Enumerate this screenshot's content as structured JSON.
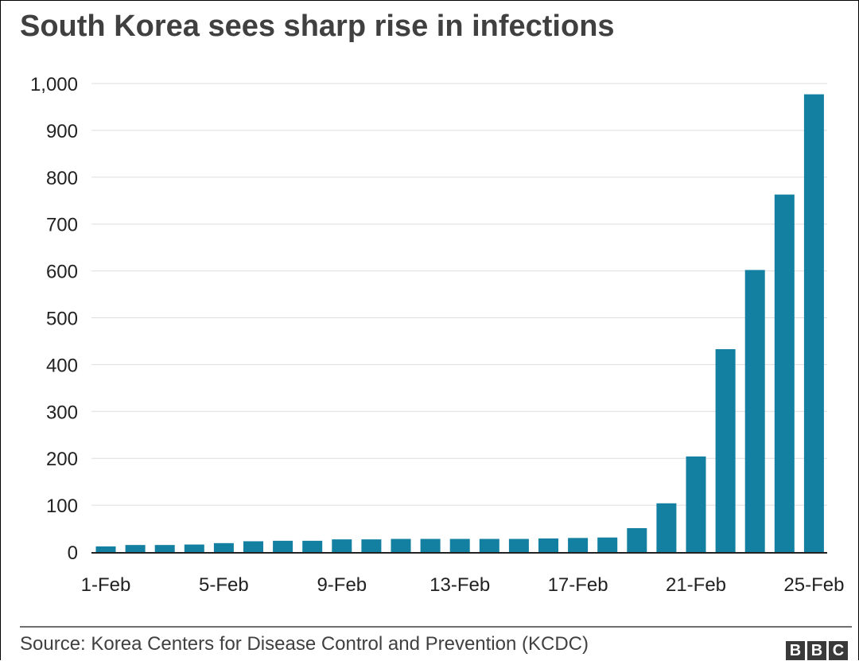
{
  "chart_data": {
    "type": "bar",
    "title": "South Korea sees sharp rise in infections",
    "categories": [
      "1-Feb",
      "2-Feb",
      "3-Feb",
      "4-Feb",
      "5-Feb",
      "6-Feb",
      "7-Feb",
      "8-Feb",
      "9-Feb",
      "10-Feb",
      "11-Feb",
      "12-Feb",
      "13-Feb",
      "14-Feb",
      "15-Feb",
      "16-Feb",
      "17-Feb",
      "18-Feb",
      "19-Feb",
      "20-Feb",
      "21-Feb",
      "22-Feb",
      "23-Feb",
      "24-Feb",
      "25-Feb"
    ],
    "x_tick_labels": [
      "1-Feb",
      "5-Feb",
      "9-Feb",
      "13-Feb",
      "17-Feb",
      "21-Feb",
      "25-Feb"
    ],
    "values": [
      12,
      15,
      15,
      16,
      19,
      23,
      24,
      24,
      27,
      27,
      28,
      28,
      28,
      28,
      28,
      29,
      30,
      31,
      51,
      104,
      204,
      433,
      602,
      763,
      977
    ],
    "y_tick_labels": [
      "0",
      "100",
      "200",
      "300",
      "400",
      "500",
      "600",
      "700",
      "800",
      "900",
      "1,000"
    ],
    "ylim": [
      0,
      1000
    ],
    "xlabel": "",
    "ylabel": "",
    "grid": "horizontal",
    "bar_color": "#1380A1"
  },
  "footer": {
    "source": "Source: Korea Centers for Disease Control and Prevention (KCDC)",
    "logo_letters": [
      "B",
      "B",
      "C"
    ]
  }
}
